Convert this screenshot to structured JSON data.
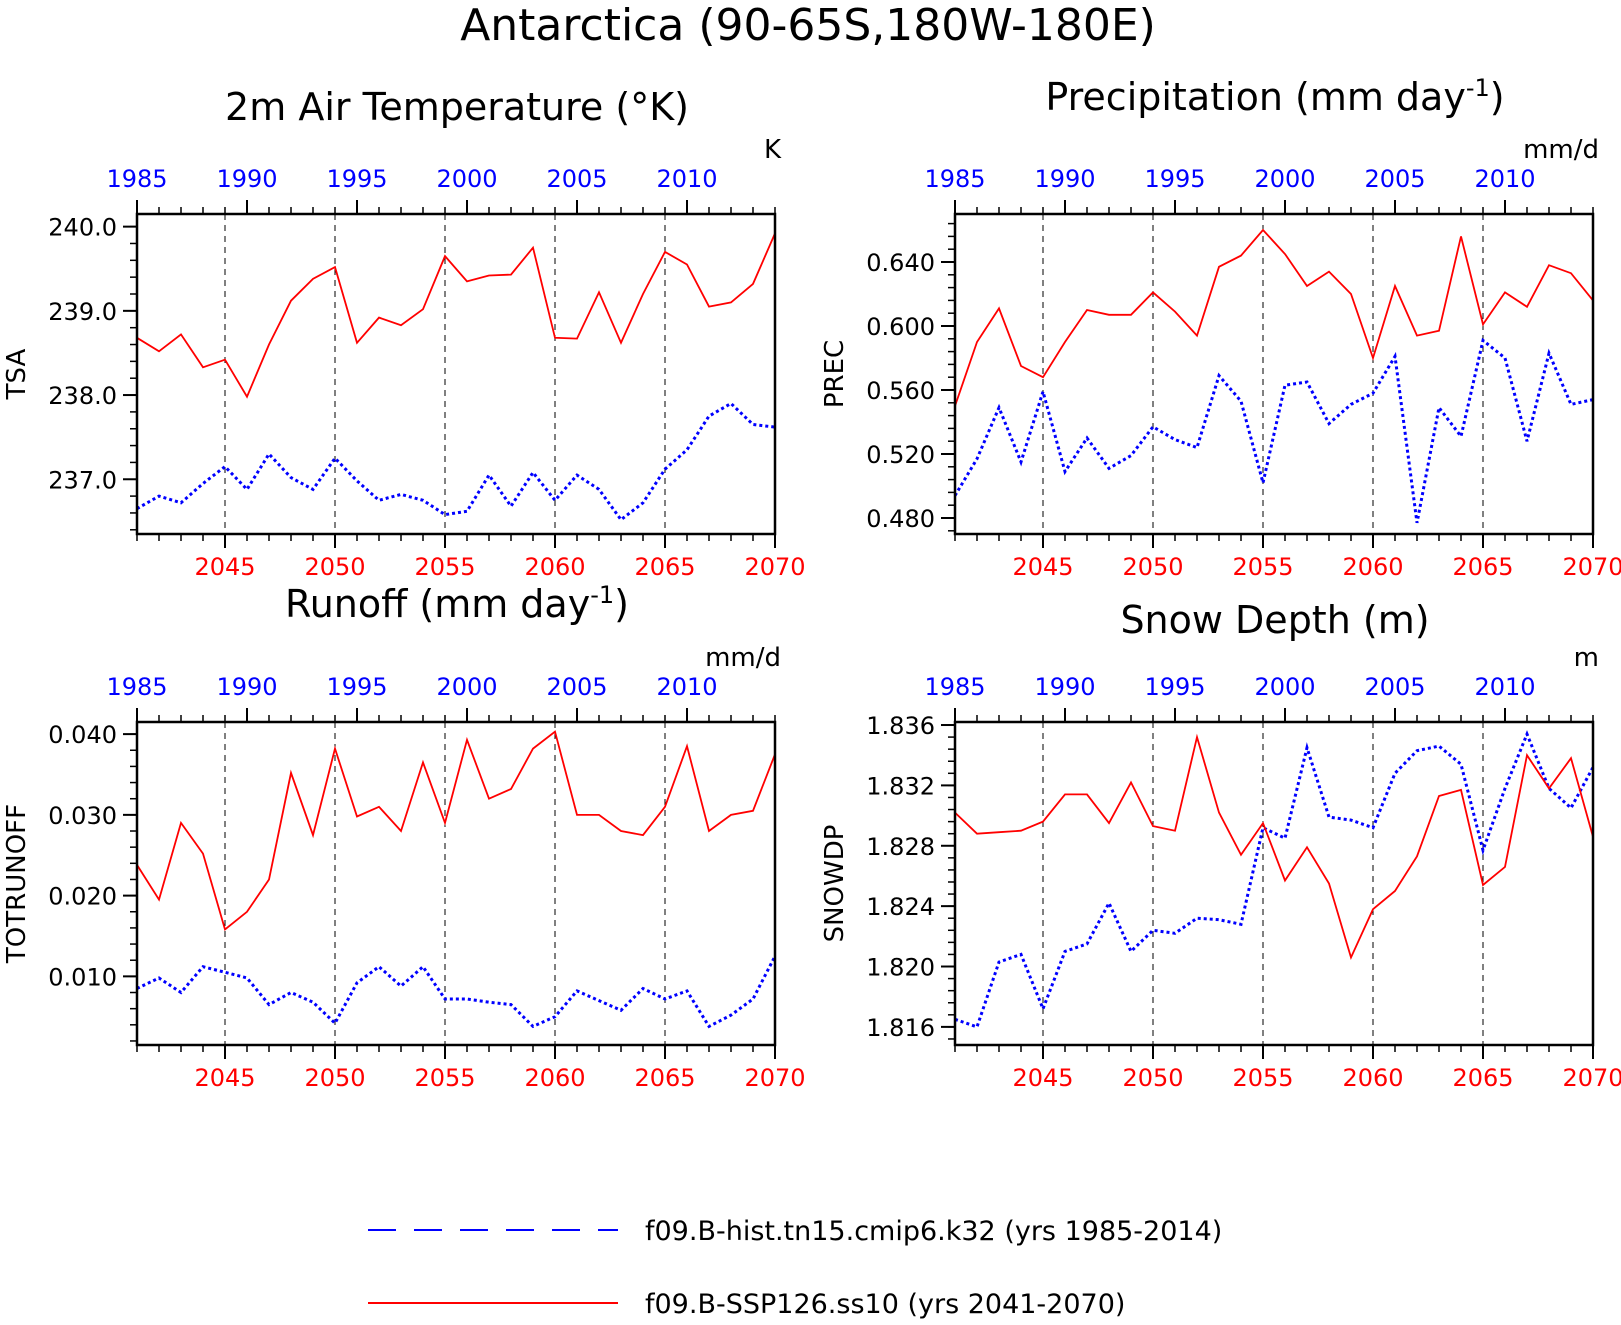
{
  "page_title": "Antarctica (90-65S,180W-180E)",
  "colors": {
    "historical": "#0000ff",
    "future": "#ff0000",
    "axis": "#000000"
  },
  "legend": {
    "entries": [
      {
        "label": "f09.B-hist.tn15.cmip6.k32 (yrs 1985-2014)",
        "color": "#0000ff",
        "style": "dashed"
      },
      {
        "label": "f09.B-SSP126.ss10 (yrs 2041-2070)",
        "color": "#ff0000",
        "style": "solid"
      }
    ]
  },
  "chart_data": [
    {
      "type": "line",
      "title": "2m Air Temperature (°K)",
      "units": "K",
      "ylabel": "TSA",
      "ylim": [
        236.35,
        240.15
      ],
      "yticks": [
        237.0,
        238.0,
        239.0,
        240.0
      ],
      "ytick_labels": [
        "237.0",
        "238.0",
        "239.0",
        "240.0"
      ],
      "y_minor_step": 0.2,
      "top_axis": {
        "range": [
          1985,
          2014
        ],
        "ticks": [
          1985,
          1990,
          1995,
          2000,
          2005,
          2010
        ]
      },
      "bottom_axis": {
        "range": [
          2041,
          2070
        ],
        "ticks": [
          2045,
          2050,
          2055,
          2060,
          2065,
          2070
        ]
      },
      "vlines": [
        2045,
        2050,
        2055,
        2060,
        2065
      ],
      "series": [
        {
          "name": "f09.B-hist.tn15.cmip6.k32 (yrs 1985-2014)",
          "color": "#0000ff",
          "style": "dotted",
          "x": [
            1985,
            1986,
            1987,
            1988,
            1989,
            1990,
            1991,
            1992,
            1993,
            1994,
            1995,
            1996,
            1997,
            1998,
            1999,
            2000,
            2001,
            2002,
            2003,
            2004,
            2005,
            2006,
            2007,
            2008,
            2009,
            2010,
            2011,
            2012,
            2013,
            2014
          ],
          "values": [
            236.65,
            236.8,
            236.72,
            236.95,
            237.15,
            236.88,
            237.3,
            237.02,
            236.88,
            237.25,
            236.98,
            236.75,
            236.82,
            236.75,
            236.58,
            236.62,
            237.05,
            236.68,
            237.08,
            236.75,
            237.05,
            236.88,
            236.52,
            236.72,
            237.12,
            237.35,
            237.75,
            237.9,
            237.65,
            237.62
          ]
        },
        {
          "name": "f09.B-SSP126.ss10 (yrs 2041-2070)",
          "color": "#ff0000",
          "style": "solid",
          "x": [
            2041,
            2042,
            2043,
            2044,
            2045,
            2046,
            2047,
            2048,
            2049,
            2050,
            2051,
            2052,
            2053,
            2054,
            2055,
            2056,
            2057,
            2058,
            2059,
            2060,
            2061,
            2062,
            2063,
            2064,
            2065,
            2066,
            2067,
            2068,
            2069,
            2070
          ],
          "values": [
            238.68,
            238.52,
            238.72,
            238.33,
            238.42,
            237.98,
            238.6,
            239.12,
            239.38,
            239.52,
            238.62,
            238.92,
            238.83,
            239.02,
            239.65,
            239.35,
            239.42,
            239.43,
            239.75,
            238.68,
            238.67,
            239.22,
            238.62,
            239.2,
            239.7,
            239.55,
            239.05,
            239.1,
            239.32,
            239.92
          ]
        }
      ]
    },
    {
      "type": "line",
      "title": "Precipitation (mm day",
      "title_sup": "-1",
      "title_end": ")",
      "units": "mm/d",
      "ylabel": "PREC",
      "ylim": [
        0.47,
        0.67
      ],
      "yticks": [
        0.48,
        0.52,
        0.56,
        0.6,
        0.64
      ],
      "ytick_labels": [
        "0.480",
        "0.520",
        "0.560",
        "0.600",
        "0.640"
      ],
      "y_minor_step": 0.008,
      "top_axis": {
        "range": [
          1985,
          2014
        ],
        "ticks": [
          1985,
          1990,
          1995,
          2000,
          2005,
          2010
        ]
      },
      "bottom_axis": {
        "range": [
          2041,
          2070
        ],
        "ticks": [
          2045,
          2050,
          2055,
          2060,
          2065,
          2070
        ]
      },
      "vlines": [
        2045,
        2050,
        2055,
        2060,
        2065
      ],
      "series": [
        {
          "name": "f09.B-hist.tn15.cmip6.k32 (yrs 1985-2014)",
          "color": "#0000ff",
          "style": "dotted",
          "x": [
            1985,
            1986,
            1987,
            1988,
            1989,
            1990,
            1991,
            1992,
            1993,
            1994,
            1995,
            1996,
            1997,
            1998,
            1999,
            2000,
            2001,
            2002,
            2003,
            2004,
            2005,
            2006,
            2007,
            2008,
            2009,
            2010,
            2011,
            2012,
            2013,
            2014
          ],
          "values": [
            0.494,
            0.517,
            0.549,
            0.515,
            0.559,
            0.509,
            0.53,
            0.511,
            0.519,
            0.537,
            0.529,
            0.524,
            0.569,
            0.553,
            0.502,
            0.563,
            0.565,
            0.539,
            0.551,
            0.558,
            0.581,
            0.477,
            0.549,
            0.531,
            0.591,
            0.58,
            0.528,
            0.583,
            0.551,
            0.554
          ]
        },
        {
          "name": "f09.B-SSP126.ss10 (yrs 2041-2070)",
          "color": "#ff0000",
          "style": "solid",
          "x": [
            2041,
            2042,
            2043,
            2044,
            2045,
            2046,
            2047,
            2048,
            2049,
            2050,
            2051,
            2052,
            2053,
            2054,
            2055,
            2056,
            2057,
            2058,
            2059,
            2060,
            2061,
            2062,
            2063,
            2064,
            2065,
            2066,
            2067,
            2068,
            2069,
            2070
          ],
          "values": [
            0.55,
            0.59,
            0.611,
            0.575,
            0.568,
            0.59,
            0.61,
            0.607,
            0.607,
            0.621,
            0.609,
            0.594,
            0.637,
            0.644,
            0.66,
            0.645,
            0.625,
            0.634,
            0.62,
            0.58,
            0.625,
            0.594,
            0.597,
            0.656,
            0.601,
            0.621,
            0.612,
            0.638,
            0.633,
            0.616
          ]
        }
      ]
    },
    {
      "type": "line",
      "title": "Runoff (mm day",
      "title_sup": "-1",
      "title_end": ")",
      "units": "mm/d",
      "ylabel": "TOTRUNOFF",
      "ylim": [
        0.0015,
        0.0415
      ],
      "yticks": [
        0.01,
        0.02,
        0.03,
        0.04
      ],
      "ytick_labels": [
        "0.010",
        "0.020",
        "0.030",
        "0.040"
      ],
      "y_minor_step": 0.002,
      "top_axis": {
        "range": [
          1985,
          2014
        ],
        "ticks": [
          1985,
          1990,
          1995,
          2000,
          2005,
          2010
        ]
      },
      "bottom_axis": {
        "range": [
          2041,
          2070
        ],
        "ticks": [
          2045,
          2050,
          2055,
          2060,
          2065,
          2070
        ]
      },
      "vlines": [
        2045,
        2050,
        2055,
        2060,
        2065
      ],
      "series": [
        {
          "name": "f09.B-hist.tn15.cmip6.k32 (yrs 1985-2014)",
          "color": "#0000ff",
          "style": "dotted",
          "x": [
            1985,
            1986,
            1987,
            1988,
            1989,
            1990,
            1991,
            1992,
            1993,
            1994,
            1995,
            1996,
            1997,
            1998,
            1999,
            2000,
            2001,
            2002,
            2003,
            2004,
            2005,
            2006,
            2007,
            2008,
            2009,
            2010,
            2011,
            2012,
            2013,
            2014
          ],
          "values": [
            0.0085,
            0.0098,
            0.008,
            0.0112,
            0.0105,
            0.0098,
            0.0065,
            0.008,
            0.0068,
            0.0042,
            0.0092,
            0.0112,
            0.0088,
            0.0112,
            0.0072,
            0.0072,
            0.0068,
            0.0065,
            0.0038,
            0.005,
            0.0082,
            0.007,
            0.0058,
            0.0085,
            0.0072,
            0.0082,
            0.0038,
            0.0052,
            0.0072,
            0.0125
          ]
        },
        {
          "name": "f09.B-SSP126.ss10 (yrs 2041-2070)",
          "color": "#ff0000",
          "style": "solid",
          "x": [
            2041,
            2042,
            2043,
            2044,
            2045,
            2046,
            2047,
            2048,
            2049,
            2050,
            2051,
            2052,
            2053,
            2054,
            2055,
            2056,
            2057,
            2058,
            2059,
            2060,
            2061,
            2062,
            2063,
            2064,
            2065,
            2066,
            2067,
            2068,
            2069,
            2070
          ],
          "values": [
            0.0238,
            0.0195,
            0.029,
            0.0252,
            0.0158,
            0.018,
            0.022,
            0.0352,
            0.0275,
            0.0382,
            0.0298,
            0.031,
            0.028,
            0.0365,
            0.029,
            0.0393,
            0.032,
            0.0332,
            0.0382,
            0.0403,
            0.03,
            0.03,
            0.028,
            0.0275,
            0.031,
            0.0385,
            0.028,
            0.03,
            0.0305,
            0.0375
          ]
        }
      ]
    },
    {
      "type": "line",
      "title": "Snow Depth (m)",
      "units": "m",
      "ylabel": "SNOWDP",
      "ylim": [
        1.8148,
        1.8362
      ],
      "yticks": [
        1.816,
        1.82,
        1.824,
        1.828,
        1.832,
        1.836
      ],
      "ytick_labels": [
        "1.816",
        "1.820",
        "1.824",
        "1.828",
        "1.832",
        "1.836"
      ],
      "y_minor_step": 0.0008,
      "top_axis": {
        "range": [
          1985,
          2014
        ],
        "ticks": [
          1985,
          1990,
          1995,
          2000,
          2005,
          2010
        ]
      },
      "bottom_axis": {
        "range": [
          2041,
          2070
        ],
        "ticks": [
          2045,
          2050,
          2055,
          2060,
          2065,
          2070
        ]
      },
      "vlines": [
        2045,
        2050,
        2055,
        2060,
        2065
      ],
      "series": [
        {
          "name": "f09.B-hist.tn15.cmip6.k32 (yrs 1985-2014)",
          "color": "#0000ff",
          "style": "dotted",
          "x": [
            1985,
            1986,
            1987,
            1988,
            1989,
            1990,
            1991,
            1992,
            1993,
            1994,
            1995,
            1996,
            1997,
            1998,
            1999,
            2000,
            2001,
            2002,
            2003,
            2004,
            2005,
            2006,
            2007,
            2008,
            2009,
            2010,
            2011,
            2012,
            2013,
            2014
          ],
          "values": [
            1.8165,
            1.816,
            1.8203,
            1.8208,
            1.8172,
            1.821,
            1.8215,
            1.8242,
            1.821,
            1.8224,
            1.8222,
            1.8232,
            1.8231,
            1.8228,
            1.8292,
            1.8285,
            1.8345,
            1.8299,
            1.8297,
            1.8292,
            1.8328,
            1.8343,
            1.8346,
            1.8334,
            1.8277,
            1.8318,
            1.8354,
            1.8318,
            1.8305,
            1.8332
          ]
        },
        {
          "name": "f09.B-SSP126.ss10 (yrs 2041-2070)",
          "color": "#ff0000",
          "style": "solid",
          "x": [
            2041,
            2042,
            2043,
            2044,
            2045,
            2046,
            2047,
            2048,
            2049,
            2050,
            2051,
            2052,
            2053,
            2054,
            2055,
            2056,
            2057,
            2058,
            2059,
            2060,
            2061,
            2062,
            2063,
            2064,
            2065,
            2066,
            2067,
            2068,
            2069,
            2070
          ],
          "values": [
            1.8302,
            1.8288,
            1.8289,
            1.829,
            1.8296,
            1.8314,
            1.8314,
            1.8295,
            1.8322,
            1.8293,
            1.829,
            1.8352,
            1.8302,
            1.8274,
            1.8295,
            1.8257,
            1.8279,
            1.8255,
            1.8206,
            1.8238,
            1.825,
            1.8273,
            1.8313,
            1.8317,
            1.8254,
            1.8266,
            1.834,
            1.8318,
            1.8338,
            1.8286
          ]
        }
      ]
    }
  ]
}
